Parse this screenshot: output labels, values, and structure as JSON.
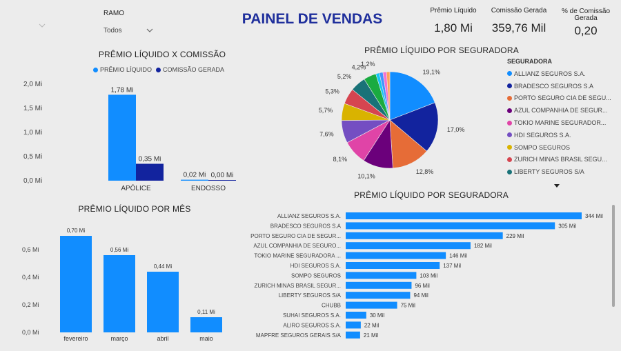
{
  "header": {
    "title": "PAINEL DE VENDAS",
    "title_color": "#1f2f9c",
    "filter": {
      "label": "RAMO",
      "value": "Todos"
    }
  },
  "kpis": [
    {
      "label": "Prêmio Líquido",
      "value": "1,80 Mi"
    },
    {
      "label": "Comissão Gerada",
      "value": "359,76 Mil"
    },
    {
      "label": "% de Comissão Gerada",
      "value": "0,20"
    }
  ],
  "colors": {
    "primary": "#118dff",
    "secondary": "#12239e"
  },
  "chart_data": [
    {
      "id": "premio_x_comissao",
      "type": "bar",
      "title": "PRÊMIO LÍQUIDO X COMISSÃO",
      "categories": [
        "APÓLICE",
        "ENDOSSO"
      ],
      "series": [
        {
          "name": "PRÊMIO LÍQUIDO",
          "color": "#118dff",
          "values": [
            1.78,
            0.02
          ],
          "labels": [
            "1,78 Mi",
            "0,02 Mi"
          ]
        },
        {
          "name": "COMISSÃO GERADA",
          "color": "#12239e",
          "values": [
            0.35,
            0.0
          ],
          "labels": [
            "0,35 Mi",
            "0,00 Mi"
          ]
        }
      ],
      "yticks": [
        "0,0 Mi",
        "0,5 Mi",
        "1,0 Mi",
        "1,5 Mi",
        "2,0 Mi"
      ],
      "ylim": [
        0,
        2.0
      ],
      "legend": "top"
    },
    {
      "id": "premio_por_seguradora_pie",
      "type": "pie",
      "title": "PRÊMIO LÍQUIDO POR SEGURADORA",
      "legend_title": "SEGURADORA",
      "legend_items": [
        "ALLIANZ SEGUROS S.A.",
        "BRADESCO SEGUROS S.A",
        "PORTO SEGURO CIA DE SEGU...",
        "AZUL COMPANHIA DE SEGUR...",
        "TOKIO MARINE SEGURADOR...",
        "HDI SEGUROS S.A.",
        "SOMPO SEGUROS",
        "ZURICH MINAS BRASIL SEGU...",
        "LIBERTY SEGUROS S/A"
      ],
      "slices": [
        {
          "value": 19.1,
          "label": "19,1%",
          "color": "#118dff"
        },
        {
          "value": 17.0,
          "label": "17,0%",
          "color": "#12239e"
        },
        {
          "value": 12.8,
          "label": "12,8%",
          "color": "#e66c37"
        },
        {
          "value": 10.1,
          "label": "10,1%",
          "color": "#6b007b"
        },
        {
          "value": 8.1,
          "label": "8,1%",
          "color": "#e044a7"
        },
        {
          "value": 7.6,
          "label": "7,6%",
          "color": "#744ec2"
        },
        {
          "value": 5.7,
          "label": "5,7%",
          "color": "#d9b300"
        },
        {
          "value": 5.3,
          "label": "5,3%",
          "color": "#d64550"
        },
        {
          "value": 5.2,
          "label": "5,2%",
          "color": "#197278"
        },
        {
          "value": 4.2,
          "label": "4,2%",
          "color": "#1aab40"
        },
        {
          "value": 1.2,
          "label": "1,2%",
          "color": "#15c6f4"
        },
        {
          "value": 1.2,
          "label": "",
          "color": "#4092ff"
        },
        {
          "value": 1.2,
          "label": "",
          "color": "#f472d0"
        },
        {
          "value": 1.1,
          "label": "",
          "color": "#ffa058"
        }
      ]
    },
    {
      "id": "premio_por_mes",
      "type": "bar",
      "title": "PRÊMIO LÍQUIDO POR MÊS",
      "categories": [
        "fevereiro",
        "março",
        "abril",
        "maio"
      ],
      "values": [
        0.7,
        0.56,
        0.44,
        0.11
      ],
      "labels": [
        "0,70 Mi",
        "0,56 Mi",
        "0,44 Mi",
        "0,11 Mi"
      ],
      "yticks": [
        "0,0 Mi",
        "0,2 Mi",
        "0,4 Mi",
        "0,6 Mi"
      ],
      "ylim": [
        0,
        0.75
      ],
      "color": "#118dff"
    },
    {
      "id": "premio_por_seguradora_bar",
      "type": "bar",
      "orientation": "horizontal",
      "title": "PRÊMIO LÍQUIDO POR SEGURADORA",
      "categories": [
        "ALLIANZ SEGUROS S.A.",
        "BRADESCO SEGUROS S.A",
        "PORTO SEGURO CIA DE SEGUR...",
        "AZUL COMPANHIA DE SEGURO...",
        "TOKIO MARINE SEGURADORA ...",
        "HDI SEGUROS S.A.",
        "SOMPO SEGUROS",
        "ZURICH MINAS BRASIL SEGUR...",
        "LIBERTY SEGUROS S/A",
        "CHUBB",
        "SUHAI SEGUROS S.A.",
        "ALIRO SEGUROS S.A.",
        "MAPFRE SEGUROS GERAIS S/A"
      ],
      "values": [
        344,
        305,
        229,
        182,
        146,
        137,
        103,
        96,
        94,
        75,
        30,
        22,
        21
      ],
      "labels": [
        "344 Mil",
        "305 Mil",
        "229 Mil",
        "182 Mil",
        "146 Mil",
        "137 Mil",
        "103 Mil",
        "96 Mil",
        "94 Mil",
        "75 Mil",
        "30 Mil",
        "22 Mil",
        "21 Mil"
      ],
      "xlim": [
        0,
        344
      ],
      "color": "#118dff"
    }
  ]
}
